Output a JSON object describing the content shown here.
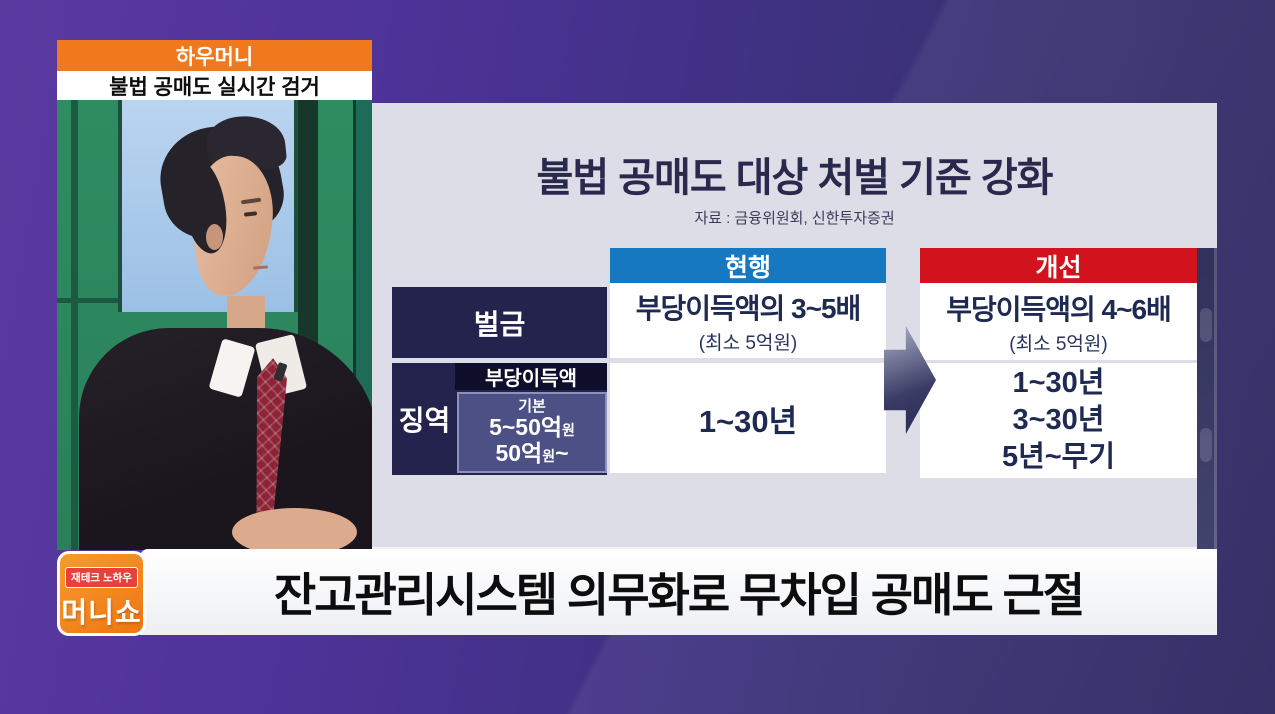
{
  "header": {
    "program": "하우머니",
    "topic": "불법 공매도 실시간 검거"
  },
  "infographic": {
    "title": "불법 공매도 대상 처벌 기준 강화",
    "source": "자료 : 금융위원회, 신한투자증권",
    "columns": {
      "current": "현행",
      "improved": "개선"
    },
    "rows": {
      "fine": {
        "label": "벌금",
        "current": {
          "main": "부당이득액의 3~5배",
          "note": "(최소 5억원)"
        },
        "improved": {
          "main": "부당이득액의 4~6배",
          "note": "(최소 5억원)"
        }
      },
      "prison": {
        "label": "징역",
        "subheader": "부당이득액",
        "tiers": {
          "basic": "기본",
          "mid": {
            "amount": "5~50억",
            "unit": "원",
            "suffix": ""
          },
          "high": {
            "amount": "50억",
            "unit": "원",
            "suffix": "~"
          }
        },
        "current": "1~30년",
        "improved": [
          "1~30년",
          "3~30년",
          "5년~무기"
        ]
      }
    }
  },
  "chart_data": {
    "type": "table",
    "title": "불법 공매도 대상 처벌 기준 강화",
    "source": "자료 : 금융위원회, 신한투자증권",
    "columns": [
      "",
      "현행",
      "개선"
    ],
    "rows": [
      [
        "벌금",
        "부당이득액의 3~5배 (최소 5억원)",
        "부당이득액의 4~6배 (최소 5억원)"
      ],
      [
        "징역 — 부당이득액: 기본 / 5~50억원 / 50억원~",
        "1~30년",
        "1~30년 / 3~30년 / 5년~무기"
      ]
    ]
  },
  "ticker": {
    "headline": "잔고관리시스템 의무화로 무차입 공매도 근절"
  },
  "logo": {
    "tagline": "재테크 노하우",
    "name": "머니쇼"
  },
  "colors": {
    "current_header": "#1778c2",
    "improved_header": "#d2121c",
    "badge_orange": "#f0791d",
    "cell_navy": "#23234d",
    "panel_bg": "#dcdde6",
    "logo_orange": "#ef7e17",
    "background_purple": "#4a3390"
  }
}
